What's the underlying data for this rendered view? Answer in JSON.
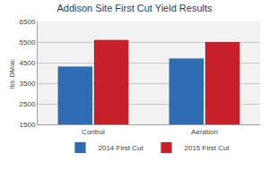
{
  "chart_data": {
    "type": "bar",
    "title": "Addison Site First Cut Yield Results",
    "y_label": "lbs. DM/ac.",
    "categories": [
      "Control",
      "Aeration"
    ],
    "series": [
      {
        "name": "2014 First Cut",
        "color": "#2e6db4",
        "values": [
          4300,
          4700
        ]
      },
      {
        "name": "2015 First Cut",
        "color": "#c8202a",
        "values": [
          5600,
          5500
        ]
      }
    ],
    "ylim": [
      1500,
      6500
    ],
    "yticks": [
      1500,
      2500,
      3500,
      4500,
      5500,
      6500
    ],
    "grid": true,
    "legend": "bottom"
  }
}
